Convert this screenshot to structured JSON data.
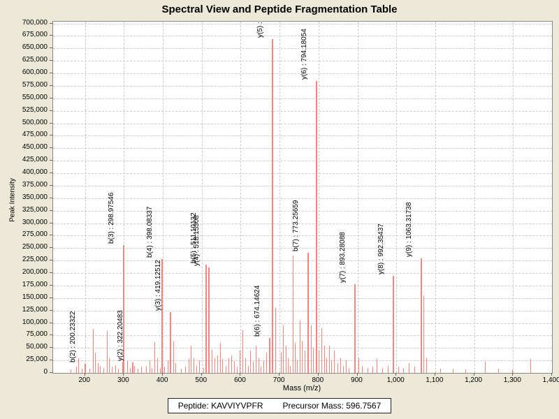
{
  "title": "Spectral View and Peptide Fragmentation Table",
  "footer": {
    "peptide_label": "Peptide: KAVVIYVPFR",
    "precursor_label": "Precursor Mass: 596.7567"
  },
  "chart_data": {
    "type": "bar",
    "subtype": "mass-spectrum-stick-plot",
    "title": "Spectral View and Peptide Fragmentation Table",
    "xlabel": "Mass (m/z)",
    "ylabel": "Peak Intensity",
    "xlim": [
      118,
      1400
    ],
    "ylim": [
      0,
      703500
    ],
    "x_ticks": [
      200,
      300,
      400,
      500,
      600,
      700,
      800,
      900,
      1000,
      1100,
      1200,
      1300,
      1400
    ],
    "x_tick_labels": [
      "200",
      "300",
      "400",
      "500",
      "600",
      "700",
      "800",
      "900",
      "1,000",
      "1,100",
      "1,200",
      "1,300",
      "1,400"
    ],
    "y_tick_min": 0,
    "y_tick_max": 700000,
    "y_tick_step": 25000,
    "grid": "dashed both axes",
    "legend": "none",
    "peak_color": "#f9837e",
    "labeled_peaks": [
      {
        "label": "b(2) : 200.23322",
        "mz": 200.23322,
        "intensity": 18000
      },
      {
        "label": "b(3) : 298.97546",
        "mz": 298.97546,
        "intensity": 256000
      },
      {
        "label": "y(2) : 322.20483",
        "mz": 322.20483,
        "intensity": 21000
      },
      {
        "label": "b(4) : 398.08337",
        "mz": 398.08337,
        "intensity": 228000
      },
      {
        "label": "y(3) : 419.12512",
        "mz": 419.12512,
        "intensity": 122000
      },
      {
        "label": "b(5) : 511.10132",
        "mz": 511.10132,
        "intensity": 217000
      },
      {
        "label": "y(4) : 518.15308",
        "mz": 518.15308,
        "intensity": 211000
      },
      {
        "label": "b(6) : 674.14624",
        "mz": 674.14624,
        "intensity": 70000
      },
      {
        "label": "y(5) :",
        "mz": 680.9,
        "intensity": 668000,
        "note": "value clipped by plot top edge"
      },
      {
        "label": "b(7) : 773.25659",
        "mz": 773.25659,
        "intensity": 240000
      },
      {
        "label": "y(6) : 794.18054",
        "mz": 794.18054,
        "intensity": 585000
      },
      {
        "label": "y(7) : 893.28088",
        "mz": 893.28088,
        "intensity": 178000
      },
      {
        "label": "y(8) : 992.35437",
        "mz": 992.35437,
        "intensity": 194000
      },
      {
        "label": "y(9) : 1063.31738",
        "mz": 1063.31738,
        "intensity": 229000
      }
    ],
    "noise_peaks": [
      [
        163,
        7000
      ],
      [
        178,
        12000
      ],
      [
        183,
        30000
      ],
      [
        192,
        8000
      ],
      [
        212,
        9000
      ],
      [
        221,
        88000
      ],
      [
        226,
        40000
      ],
      [
        232,
        20000
      ],
      [
        238,
        14000
      ],
      [
        247,
        10000
      ],
      [
        256,
        84000
      ],
      [
        261,
        30000
      ],
      [
        268,
        12000
      ],
      [
        277,
        16000
      ],
      [
        285,
        9000
      ],
      [
        295,
        22000
      ],
      [
        308,
        24000
      ],
      [
        315,
        10000
      ],
      [
        327,
        14000
      ],
      [
        336,
        9000
      ],
      [
        345,
        12000
      ],
      [
        356,
        14000
      ],
      [
        365,
        25000
      ],
      [
        371,
        10000
      ],
      [
        379,
        62000
      ],
      [
        386,
        30000
      ],
      [
        393,
        10000
      ],
      [
        404,
        12000
      ],
      [
        412,
        25000
      ],
      [
        427,
        63000
      ],
      [
        433,
        20000
      ],
      [
        447,
        9000
      ],
      [
        457,
        12000
      ],
      [
        466,
        28000
      ],
      [
        472,
        55000
      ],
      [
        478,
        30000
      ],
      [
        486,
        14000
      ],
      [
        494,
        25000
      ],
      [
        504,
        10000
      ],
      [
        526,
        46000
      ],
      [
        532,
        30000
      ],
      [
        539,
        35000
      ],
      [
        547,
        60000
      ],
      [
        553,
        28000
      ],
      [
        561,
        14000
      ],
      [
        568,
        30000
      ],
      [
        575,
        35000
      ],
      [
        583,
        24000
      ],
      [
        590,
        12000
      ],
      [
        597,
        45000
      ],
      [
        604,
        86000
      ],
      [
        611,
        30000
      ],
      [
        618,
        14000
      ],
      [
        624,
        45000
      ],
      [
        631,
        22000
      ],
      [
        638,
        55000
      ],
      [
        645,
        30000
      ],
      [
        652,
        12000
      ],
      [
        659,
        24000
      ],
      [
        666,
        40000
      ],
      [
        689,
        130000
      ],
      [
        704,
        40000
      ],
      [
        709,
        95000
      ],
      [
        715,
        55000
      ],
      [
        721,
        30000
      ],
      [
        727,
        14000
      ],
      [
        733,
        235000
      ],
      [
        739,
        60000
      ],
      [
        745,
        25000
      ],
      [
        752,
        105000
      ],
      [
        758,
        65000
      ],
      [
        765,
        45000
      ],
      [
        780,
        95000
      ],
      [
        786,
        50000
      ],
      [
        801,
        45000
      ],
      [
        807,
        90000
      ],
      [
        814,
        55000
      ],
      [
        820,
        30000
      ],
      [
        827,
        55000
      ],
      [
        833,
        25000
      ],
      [
        840,
        45000
      ],
      [
        848,
        20000
      ],
      [
        856,
        30000
      ],
      [
        863,
        14000
      ],
      [
        870,
        25000
      ],
      [
        878,
        10000
      ],
      [
        902,
        30000
      ],
      [
        912,
        14000
      ],
      [
        925,
        10000
      ],
      [
        938,
        12000
      ],
      [
        950,
        28000
      ],
      [
        963,
        10000
      ],
      [
        978,
        14000
      ],
      [
        1005,
        12000
      ],
      [
        1018,
        10000
      ],
      [
        1032,
        20000
      ],
      [
        1046,
        12000
      ],
      [
        1069,
        155000
      ],
      [
        1076,
        30000
      ],
      [
        1112,
        8000
      ],
      [
        1145,
        9000
      ],
      [
        1178,
        7000
      ],
      [
        1228,
        22000
      ],
      [
        1262,
        8000
      ],
      [
        1297,
        7000
      ],
      [
        1345,
        28000
      ]
    ]
  }
}
